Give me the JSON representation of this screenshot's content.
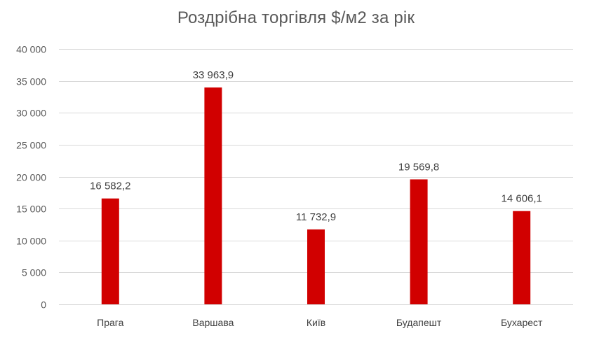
{
  "chart_data": {
    "type": "bar",
    "title": "Роздрібна торгівля $/м2 за рік",
    "categories": [
      "Прага",
      "Варшава",
      "Київ",
      "Будапешт",
      "Бухарест"
    ],
    "series": [
      {
        "values": [
          16582.2,
          33963.9,
          11732.9,
          19569.8,
          14606.1
        ],
        "color": "#d10000"
      }
    ],
    "data_labels": [
      "16 582,2",
      "33 963,9",
      "11 732,9",
      "19 569,8",
      "14 606,1"
    ],
    "ylim": [
      0,
      40000
    ],
    "yticks": [
      0,
      5000,
      10000,
      15000,
      20000,
      25000,
      30000,
      35000,
      40000
    ],
    "ytick_labels": [
      "0",
      "5 000",
      "10 000",
      "15 000",
      "20 000",
      "25 000",
      "30 000",
      "35 000",
      "40 000"
    ],
    "xlabel": "",
    "ylabel": "",
    "grid": true,
    "legend": "none",
    "colors": {
      "bar": "#d10000",
      "grid": "#d9d9d9",
      "text": "#595959"
    }
  }
}
